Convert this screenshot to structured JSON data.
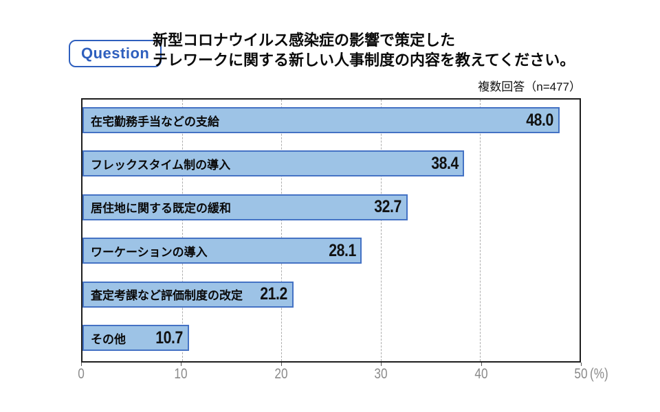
{
  "header": {
    "badge": "Question",
    "title_line1": "新型コロナウイルス感染症の影響で策定した",
    "title_line2": "テレワークに関する新しい人事制度の内容を教えてください。",
    "note": "複数回答（n=477）"
  },
  "chart_data": {
    "type": "bar",
    "orientation": "horizontal",
    "title": "新型コロナウイルス感染症の影響で策定したテレワークに関する新しい人事制度の内容",
    "subtitle": "複数回答（n=477）",
    "categories": [
      "在宅勤務手当などの支給",
      "フレックスタイム制の導入",
      "居住地に関する既定の緩和",
      "ワーケーションの導入",
      "査定考課など評価制度の改定",
      "その他"
    ],
    "values": [
      48.0,
      38.4,
      32.7,
      28.1,
      21.2,
      10.7
    ],
    "value_labels": [
      "48.0",
      "38.4",
      "32.7",
      "28.1",
      "21.2",
      "10.7"
    ],
    "xlabel": "(%)",
    "ylabel": "",
    "xlim": [
      0,
      50
    ],
    "xticks": [
      0,
      10,
      20,
      30,
      40,
      50
    ],
    "grid": "vertical-dashed",
    "legend": "none",
    "colors": {
      "bar_fill": "#9DC3E6",
      "bar_border": "#4472C4",
      "plot_border": "#1c1c1c",
      "grid": "#adadad",
      "axis_text": "#8a8a8a",
      "badge_blue": "#2E5FBE"
    }
  }
}
